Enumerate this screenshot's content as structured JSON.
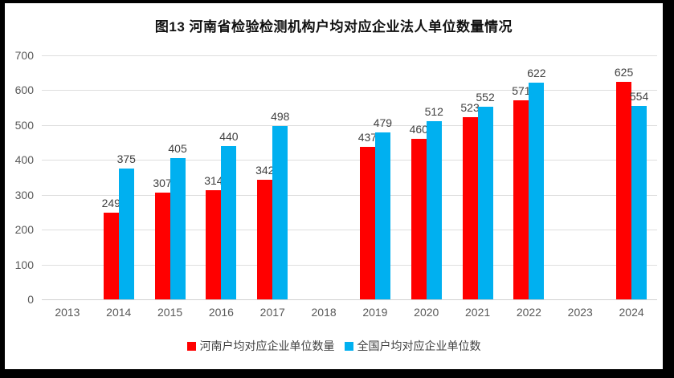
{
  "window": {
    "frame_color": "#000000",
    "canvas_color": "#ffffff"
  },
  "title": {
    "text": "图13 河南省检验检测机构户均对应企业法人单位数量情况"
  },
  "chart_data": {
    "type": "bar",
    "title": "图13 河南省检验检测机构户均对应企业法人单位数量情况",
    "categories": [
      "2013",
      "2014",
      "2015",
      "2016",
      "2017",
      "2018",
      "2019",
      "2020",
      "2021",
      "2022",
      "2023",
      "2024"
    ],
    "series": [
      {
        "name": "河南户均对应企业单位数量",
        "color": "#ff0000",
        "values": [
          null,
          249,
          307,
          314,
          342,
          null,
          437,
          460,
          523,
          571,
          null,
          625
        ]
      },
      {
        "name": "全国户均对应企业单位数",
        "color": "#00b0f0",
        "values": [
          null,
          375,
          405,
          440,
          498,
          null,
          479,
          512,
          552,
          622,
          null,
          554
        ]
      }
    ],
    "ylim": [
      0,
      700
    ],
    "yticks": [
      0,
      100,
      200,
      300,
      400,
      500,
      600,
      700
    ],
    "grid": true,
    "data_labels": true,
    "legend_position": "bottom"
  },
  "colors": {
    "gridline": "#dedede",
    "axis_line": "#d0d0d0",
    "tick_label": "#595959",
    "data_label": "#404040",
    "title": "#111111"
  }
}
